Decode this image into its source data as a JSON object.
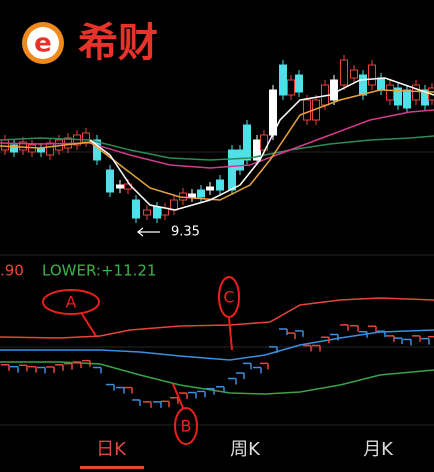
{
  "logo": {
    "mark": "e",
    "name": "希财"
  },
  "price_chart": {
    "low_label": "9.35"
  },
  "indicator": {
    "prefix": ".90",
    "lower": "LOWER:+11.21"
  },
  "annotations": [
    "A",
    "B",
    "C"
  ],
  "tabs": [
    "日K",
    "周K",
    "月K"
  ]
}
